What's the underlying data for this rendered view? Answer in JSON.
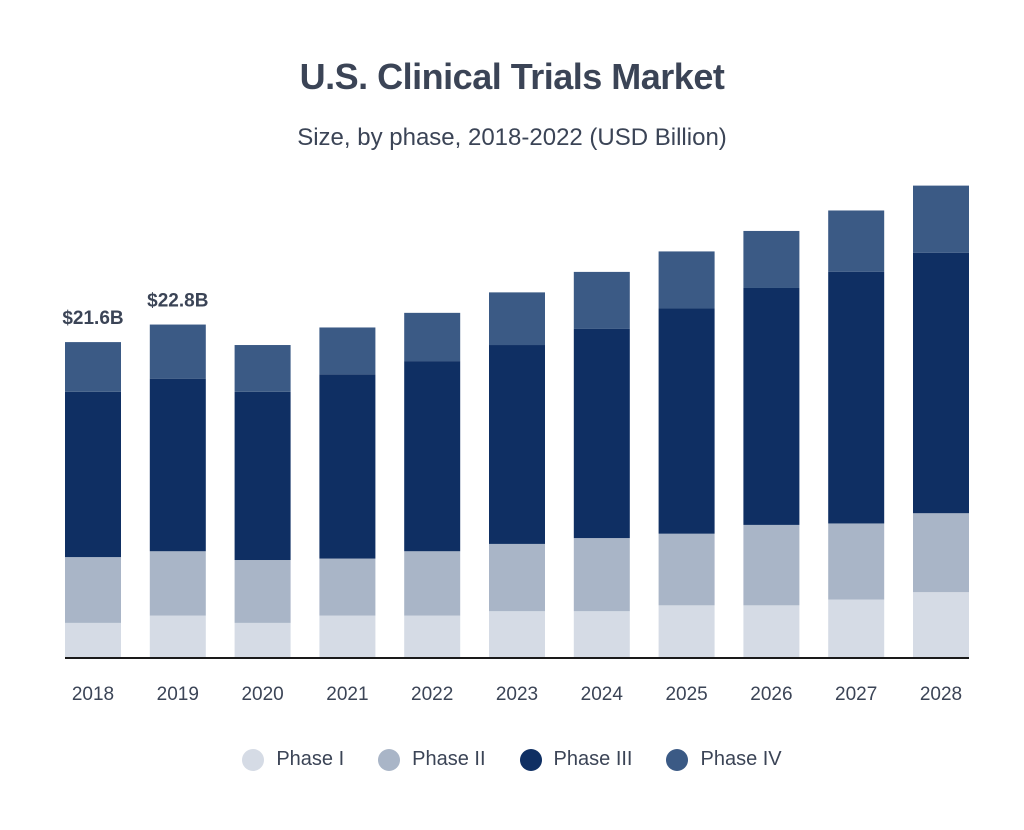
{
  "chart_data": {
    "type": "bar",
    "stacked": true,
    "title": "U.S. Clinical Trials Market",
    "subtitle": "Size, by phase, 2018-2022 (USD Billion)",
    "xlabel": "",
    "ylabel": "",
    "ylim": [
      0,
      32
    ],
    "grid": false,
    "legend_position": "bottom",
    "categories": [
      "2018",
      "2019",
      "2020",
      "2021",
      "2022",
      "2023",
      "2024",
      "2025",
      "2026",
      "2027",
      "2028"
    ],
    "series": [
      {
        "name": "Phase I",
        "color": "#d5dbe5",
        "values": [
          2.4,
          2.9,
          2.4,
          2.9,
          2.9,
          3.2,
          3.2,
          3.6,
          3.6,
          4.0,
          4.5
        ]
      },
      {
        "name": "Phase II",
        "color": "#a9b5c7",
        "values": [
          4.5,
          4.4,
          4.3,
          3.9,
          4.4,
          4.6,
          5.0,
          4.9,
          5.5,
          5.2,
          5.4
        ]
      },
      {
        "name": "Phase III",
        "color": "#0f2f63",
        "values": [
          11.3,
          11.8,
          11.5,
          12.6,
          13.0,
          13.6,
          14.3,
          15.4,
          16.2,
          17.2,
          17.8
        ]
      },
      {
        "name": "Phase IV",
        "color": "#3b5a85",
        "values": [
          3.4,
          3.7,
          3.2,
          3.2,
          3.3,
          3.6,
          3.9,
          3.9,
          3.9,
          4.2,
          4.6
        ]
      }
    ],
    "data_labels": [
      {
        "category": "2018",
        "text": "$21.6B"
      },
      {
        "category": "2019",
        "text": "$22.8B"
      }
    ]
  }
}
